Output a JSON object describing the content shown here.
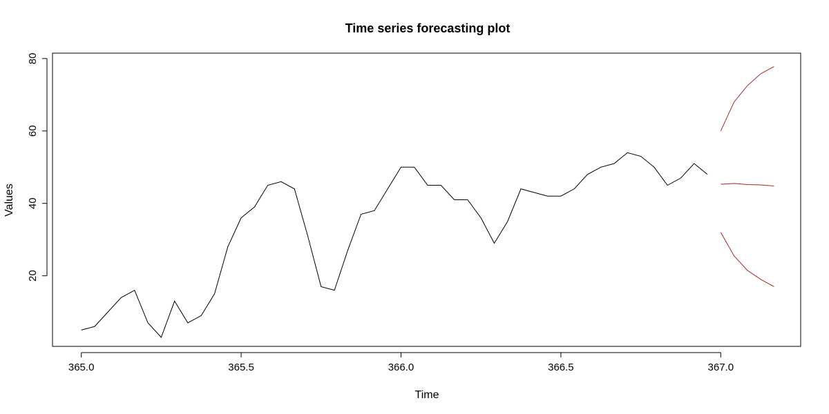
{
  "chart_data": {
    "type": "line",
    "title": "Time series forecasting plot",
    "xlabel": "Time",
    "ylabel": "Values",
    "xlim": [
      364.91,
      367.25
    ],
    "ylim": [
      0.5,
      81.5
    ],
    "x_ticks": [
      365.0,
      365.5,
      366.0,
      366.5,
      367.0
    ],
    "x_tick_labels": [
      "365.0",
      "365.5",
      "366.0",
      "366.5",
      "367.0"
    ],
    "y_ticks": [
      20,
      40,
      60,
      80
    ],
    "y_tick_labels": [
      "20",
      "40",
      "60",
      "80"
    ],
    "grid": false,
    "series": [
      {
        "color": "#000000",
        "x": [
          365.0,
          365.0417,
          365.0833,
          365.125,
          365.1667,
          365.2083,
          365.25,
          365.2917,
          365.3333,
          365.375,
          365.4167,
          365.4583,
          365.5,
          365.5417,
          365.5833,
          365.625,
          365.6667,
          365.7083,
          365.75,
          365.7917,
          365.8333,
          365.875,
          365.9167,
          365.9583,
          366.0,
          366.0417,
          366.0833,
          366.125,
          366.1667,
          366.2083,
          366.25,
          366.2917,
          366.3333,
          366.375,
          366.4167,
          366.4583,
          366.5,
          366.5417,
          366.5833,
          366.625,
          366.6667,
          366.7083,
          366.75,
          366.7917,
          366.8333,
          366.875,
          366.9167,
          366.9583
        ],
        "values": [
          5,
          6,
          10,
          14,
          16,
          7,
          3,
          13,
          7,
          9,
          15,
          28,
          36,
          39,
          45,
          46,
          44,
          31,
          17,
          16,
          27,
          37,
          38,
          44,
          50,
          50,
          45,
          45,
          41,
          41,
          36,
          29,
          35,
          44,
          43,
          42,
          42,
          44,
          48,
          50,
          51,
          54,
          53,
          50,
          45,
          47,
          51,
          48
        ]
      },
      {
        "color": "#b22222",
        "x": [
          367.0,
          367.0417,
          367.0833,
          367.125,
          367.1667
        ],
        "values": [
          45.3,
          45.5,
          45.2,
          45.1,
          44.8
        ]
      },
      {
        "color": "#b22222",
        "x": [
          367.0,
          367.0417,
          367.0833,
          367.125,
          367.1667
        ],
        "values": [
          60,
          68,
          72.5,
          75.8,
          77.8
        ]
      },
      {
        "color": "#b22222",
        "x": [
          367.0,
          367.0417,
          367.0833,
          367.125,
          367.1667
        ],
        "values": [
          32,
          25.5,
          21.5,
          19,
          17
        ]
      }
    ]
  }
}
